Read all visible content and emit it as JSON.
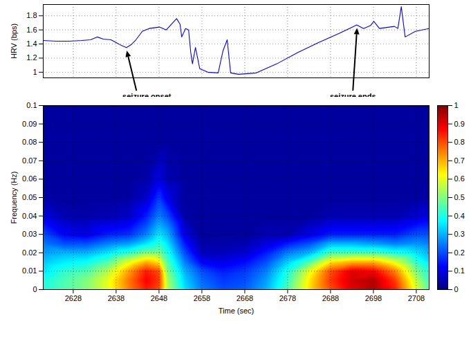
{
  "chart_data": [
    {
      "type": "line",
      "ylabel": "HRV (bps)",
      "x": [
        2621,
        2624,
        2627.1,
        2630,
        2632,
        2633.6,
        2635,
        2636.8,
        2638,
        2639.2,
        2640.4,
        2641.5,
        2642.5,
        2644.1,
        2645.7,
        2648.1,
        2649.7,
        2652.1,
        2652.9,
        2653.3,
        2654.2,
        2654.9,
        2655.4,
        2655.8,
        2656.5,
        2657.5,
        2659.4,
        2661.8,
        2662.9,
        2663.9,
        2664.7,
        2666.6,
        2670.7,
        2675.5,
        2680.4,
        2685.2,
        2690,
        2694.1,
        2695.7,
        2697.3,
        2698.1,
        2699.4,
        2702.9,
        2703.7,
        2704.5,
        2705.4,
        2707.8,
        2711
      ],
      "values": [
        1.45,
        1.44,
        1.44,
        1.45,
        1.46,
        1.5,
        1.47,
        1.46,
        1.42,
        1.38,
        1.35,
        1.39,
        1.45,
        1.58,
        1.62,
        1.64,
        1.6,
        1.76,
        1.68,
        1.5,
        1.62,
        1.6,
        1.28,
        1.12,
        1.35,
        1.05,
        1,
        0.99,
        1.3,
        1.46,
        0.99,
        0.97,
        0.99,
        1.12,
        1.28,
        1.42,
        1.55,
        1.67,
        1.62,
        1.66,
        1.72,
        1.62,
        1.65,
        1.62,
        1.93,
        1.5,
        1.58,
        1.62
      ],
      "color": "#0000ff",
      "xlim": [
        2621,
        2711
      ],
      "ylim": [
        0.92,
        1.96
      ],
      "xticks": [
        2628,
        2638,
        2648,
        2658,
        2668,
        2678,
        2688,
        2698,
        2708
      ],
      "yticks": [
        1,
        1.2,
        1.4,
        1.6,
        1.8
      ],
      "grid": true,
      "tick_labels": "y",
      "annotations": [
        {
          "text": "seizure onset",
          "x": 2640.4,
          "y": 1.35
        },
        {
          "text": "seizure ends",
          "x": 2694.1,
          "y": 1.67
        }
      ]
    },
    {
      "type": "heatmap",
      "xlabel": "Time (sec)",
      "ylabel": "Frequency (Hz)",
      "x": [
        2621,
        2626,
        2631,
        2636,
        2641,
        2645,
        2648,
        2650,
        2654,
        2658,
        2663,
        2668,
        2673,
        2678,
        2683,
        2688,
        2693,
        2698,
        2703,
        2708,
        2711
      ],
      "y": [
        0,
        0.005,
        0.01,
        0.015,
        0.02,
        0.025,
        0.03,
        0.04,
        0.05,
        0.06,
        0.08,
        0.1
      ],
      "values": [
        [
          0.4,
          0.45,
          0.5,
          0.6,
          0.75,
          0.85,
          0.8,
          0.55,
          0.35,
          0.25,
          0.2,
          0.22,
          0.3,
          0.45,
          0.65,
          0.8,
          0.9,
          0.95,
          0.85,
          0.6,
          0.45
        ],
        [
          0.4,
          0.45,
          0.5,
          0.6,
          0.76,
          0.88,
          0.82,
          0.54,
          0.33,
          0.23,
          0.18,
          0.2,
          0.28,
          0.43,
          0.64,
          0.82,
          0.92,
          0.95,
          0.82,
          0.56,
          0.43
        ],
        [
          0.35,
          0.42,
          0.45,
          0.55,
          0.72,
          0.85,
          0.8,
          0.5,
          0.3,
          0.2,
          0.15,
          0.18,
          0.25,
          0.4,
          0.6,
          0.8,
          0.9,
          0.88,
          0.75,
          0.5,
          0.4
        ],
        [
          0.32,
          0.36,
          0.38,
          0.45,
          0.6,
          0.7,
          0.65,
          0.45,
          0.25,
          0.12,
          0.1,
          0.13,
          0.2,
          0.33,
          0.45,
          0.65,
          0.7,
          0.7,
          0.6,
          0.42,
          0.35
        ],
        [
          0.28,
          0.3,
          0.3,
          0.35,
          0.42,
          0.5,
          0.5,
          0.4,
          0.2,
          0.06,
          0.06,
          0.08,
          0.15,
          0.25,
          0.3,
          0.45,
          0.45,
          0.45,
          0.4,
          0.35,
          0.3
        ],
        [
          0.24,
          0.2,
          0.2,
          0.25,
          0.28,
          0.35,
          0.42,
          0.35,
          0.15,
          0.04,
          0.04,
          0.05,
          0.09,
          0.15,
          0.2,
          0.3,
          0.3,
          0.28,
          0.25,
          0.27,
          0.25
        ],
        [
          0.2,
          0.12,
          0.1,
          0.15,
          0.17,
          0.25,
          0.35,
          0.3,
          0.1,
          0.03,
          0.03,
          0.03,
          0.05,
          0.05,
          0.1,
          0.15,
          0.15,
          0.15,
          0.15,
          0.2,
          0.2
        ],
        [
          0.1,
          0.05,
          0.04,
          0.05,
          0.07,
          0.15,
          0.25,
          0.2,
          0.04,
          0.03,
          0.03,
          0.03,
          0.03,
          0.03,
          0.03,
          0.05,
          0.05,
          0.05,
          0.05,
          0.08,
          0.1
        ],
        [
          0.04,
          0.03,
          0.03,
          0.03,
          0.03,
          0.07,
          0.18,
          0.1,
          0.03,
          0.03,
          0.03,
          0.03,
          0.03,
          0.03,
          0.03,
          0.03,
          0.03,
          0.03,
          0.03,
          0.03,
          0.04
        ],
        [
          0.03,
          0.03,
          0.03,
          0.03,
          0.03,
          0.04,
          0.1,
          0.05,
          0.03,
          0.03,
          0.03,
          0.03,
          0.03,
          0.03,
          0.03,
          0.03,
          0.03,
          0.03,
          0.03,
          0.03,
          0.03
        ],
        [
          0.03,
          0.03,
          0.03,
          0.03,
          0.03,
          0.03,
          0.03,
          0.03,
          0.03,
          0.03,
          0.03,
          0.03,
          0.03,
          0.03,
          0.03,
          0.03,
          0.03,
          0.03,
          0.03,
          0.03,
          0.03
        ],
        [
          0.03,
          0.03,
          0.03,
          0.03,
          0.03,
          0.03,
          0.03,
          0.03,
          0.03,
          0.03,
          0.03,
          0.03,
          0.03,
          0.03,
          0.03,
          0.03,
          0.03,
          0.03,
          0.03,
          0.03,
          0.03
        ]
      ],
      "xlim": [
        2621,
        2711
      ],
      "ylim": [
        0,
        0.1
      ],
      "xticks": [
        2628,
        2638,
        2648,
        2658,
        2668,
        2678,
        2688,
        2698,
        2708
      ],
      "yticks": [
        0,
        0.01,
        0.02,
        0.03,
        0.04,
        0.05,
        0.06,
        0.07,
        0.08,
        0.09,
        0.1
      ],
      "grid": true,
      "clim": [
        0,
        1
      ],
      "cticks": [
        0,
        0.1,
        0.2,
        0.3,
        0.4,
        0.5,
        0.6,
        0.7,
        0.8,
        0.9,
        1
      ]
    }
  ]
}
